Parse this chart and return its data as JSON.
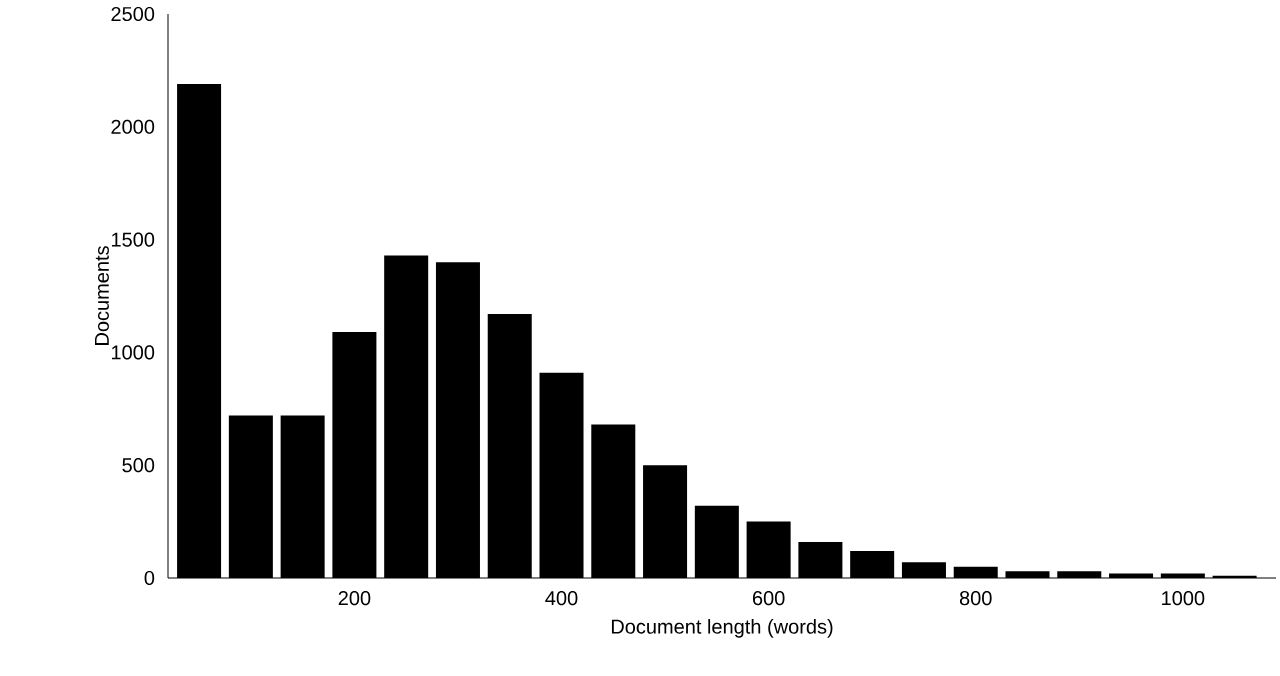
{
  "chart_data": {
    "type": "histogram",
    "xlabel": "Document length (words)",
    "ylabel": "Documents",
    "bins": [
      25,
      75,
      125,
      175,
      225,
      275,
      325,
      375,
      425,
      475,
      525,
      575,
      625,
      675,
      725,
      775,
      825,
      875,
      925,
      975,
      1025,
      1075
    ],
    "values": [
      2190,
      720,
      720,
      1090,
      1430,
      1400,
      1170,
      910,
      680,
      500,
      320,
      250,
      160,
      120,
      70,
      50,
      30,
      30,
      20,
      20,
      10
    ],
    "color": "#000000",
    "xlim": [
      20,
      1090
    ],
    "ylim": [
      0,
      2500
    ],
    "xticks": [
      200,
      400,
      600,
      800,
      1000
    ],
    "yticks": [
      0,
      500,
      1000,
      1500,
      2000,
      2500
    ]
  }
}
